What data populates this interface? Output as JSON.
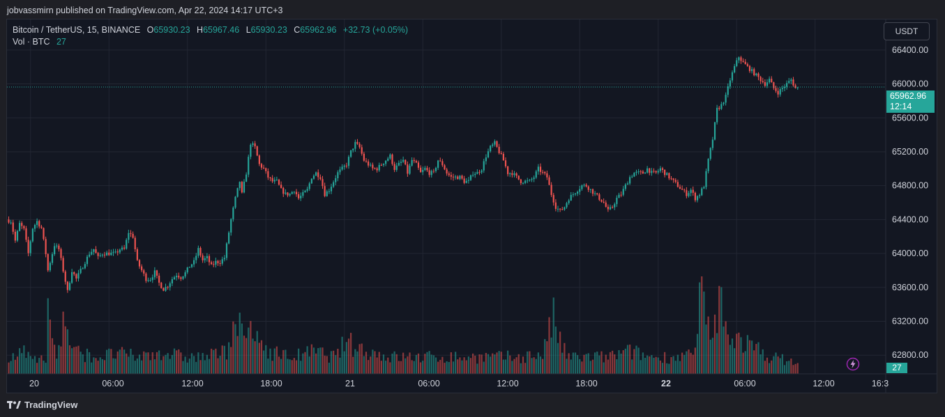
{
  "header": {
    "text": "jobvassmirn published on TradingView.com, Apr 22, 2024 14:17 UTC+3"
  },
  "legend": {
    "symbol": "Bitcoin / TetherUS, 15, BINANCE",
    "o_label": "O",
    "o_value": "65930.23",
    "h_label": "H",
    "h_value": "65967.46",
    "l_label": "L",
    "l_value": "65930.23",
    "c_label": "C",
    "c_value": "65962.96",
    "change": "+32.73 (+0.05%)",
    "vol_label": "Vol · BTC",
    "vol_value": "27"
  },
  "currency": {
    "label": "USDT"
  },
  "price_tag": {
    "price": "65962.96",
    "countdown": "12:14"
  },
  "volume_tag": {
    "value": "27"
  },
  "footer": {
    "brand": "TradingView"
  },
  "colors": {
    "up": "#26a69a",
    "down": "#ef5350",
    "background": "#131722",
    "grid": "#232733"
  },
  "icons": {
    "footer_logo": "tradingview-logo-icon",
    "replay": "lightning-bolt-icon"
  },
  "chart_data": {
    "type": "candlestick",
    "symbol": "BTCUSDT",
    "interval": "15",
    "exchange": "BINANCE",
    "current_price": 65962.96,
    "ylim": [
      62580,
      66760
    ],
    "y_ticks": [
      62800,
      63200,
      63600,
      64000,
      64400,
      64800,
      65200,
      65600,
      66000,
      66400
    ],
    "y_tick_labels": [
      "62800.00",
      "63200.00",
      "63600.00",
      "64000.00",
      "64400.00",
      "64800.00",
      "65200.00",
      "65600.00",
      "66000.00",
      "66400.00"
    ],
    "x_ticks": [
      {
        "label": "20",
        "bold": false
      },
      {
        "label": "06:00",
        "bold": false
      },
      {
        "label": "12:00",
        "bold": false
      },
      {
        "label": "18:00",
        "bold": false
      },
      {
        "label": "21",
        "bold": false
      },
      {
        "label": "06:00",
        "bold": false
      },
      {
        "label": "12:00",
        "bold": false
      },
      {
        "label": "18:00",
        "bold": false
      },
      {
        "label": "22",
        "bold": true
      },
      {
        "label": "06:00",
        "bold": false
      },
      {
        "label": "12:00",
        "bold": false
      },
      {
        "label": "16:3",
        "bold": false
      }
    ],
    "grid": true,
    "anchors": [
      [
        0,
        64400
      ],
      [
        2,
        64380
      ],
      [
        4,
        64150
      ],
      [
        6,
        64350
      ],
      [
        8,
        64280
      ],
      [
        10,
        64000
      ],
      [
        12,
        64300
      ],
      [
        14,
        64380
      ],
      [
        16,
        64300
      ],
      [
        18,
        64000
      ],
      [
        19,
        63800
      ],
      [
        20,
        63900
      ],
      [
        22,
        64100
      ],
      [
        24,
        64050
      ],
      [
        26,
        63800
      ],
      [
        28,
        63550
      ],
      [
        30,
        63800
      ],
      [
        32,
        63700
      ],
      [
        34,
        63800
      ],
      [
        36,
        63900
      ],
      [
        38,
        64000
      ],
      [
        40,
        64050
      ],
      [
        42,
        63950
      ],
      [
        44,
        64000
      ],
      [
        46,
        64000
      ],
      [
        48,
        64000
      ],
      [
        50,
        64000
      ],
      [
        52,
        64050
      ],
      [
        54,
        64050
      ],
      [
        56,
        64250
      ],
      [
        58,
        64200
      ],
      [
        60,
        63900
      ],
      [
        62,
        63800
      ],
      [
        64,
        63700
      ],
      [
        66,
        63700
      ],
      [
        68,
        63780
      ],
      [
        70,
        63650
      ],
      [
        72,
        63580
      ],
      [
        74,
        63620
      ],
      [
        76,
        63700
      ],
      [
        78,
        63750
      ],
      [
        80,
        63720
      ],
      [
        82,
        63770
      ],
      [
        84,
        63850
      ],
      [
        86,
        63900
      ],
      [
        88,
        64050
      ],
      [
        90,
        63920
      ],
      [
        92,
        63950
      ],
      [
        94,
        63850
      ],
      [
        96,
        63900
      ],
      [
        98,
        63900
      ],
      [
        100,
        63950
      ],
      [
        103,
        64400
      ],
      [
        105,
        64650
      ],
      [
        106,
        64750
      ],
      [
        107,
        64850
      ],
      [
        108,
        64700
      ],
      [
        110,
        64950
      ],
      [
        112,
        65300
      ],
      [
        114,
        65250
      ],
      [
        116,
        65050
      ],
      [
        118,
        65000
      ],
      [
        120,
        64900
      ],
      [
        122,
        64850
      ],
      [
        124,
        64850
      ],
      [
        126,
        64750
      ],
      [
        128,
        64700
      ],
      [
        130,
        64700
      ],
      [
        132,
        64750
      ],
      [
        134,
        64650
      ],
      [
        136,
        64700
      ],
      [
        138,
        64750
      ],
      [
        140,
        64900
      ],
      [
        142,
        64950
      ],
      [
        144,
        64900
      ],
      [
        146,
        64700
      ],
      [
        148,
        64750
      ],
      [
        150,
        64850
      ],
      [
        152,
        64950
      ],
      [
        154,
        65000
      ],
      [
        156,
        65050
      ],
      [
        158,
        65200
      ],
      [
        160,
        65300
      ],
      [
        162,
        65250
      ],
      [
        164,
        65100
      ],
      [
        166,
        65050
      ],
      [
        168,
        65000
      ],
      [
        170,
        65000
      ],
      [
        172,
        65050
      ],
      [
        174,
        65100
      ],
      [
        176,
        65150
      ],
      [
        178,
        65000
      ],
      [
        180,
        65050
      ],
      [
        182,
        65100
      ],
      [
        184,
        64950
      ],
      [
        186,
        65100
      ],
      [
        188,
        65050
      ],
      [
        190,
        64950
      ],
      [
        192,
        65000
      ],
      [
        194,
        64950
      ],
      [
        196,
        64950
      ],
      [
        198,
        65100
      ],
      [
        200,
        65050
      ],
      [
        202,
        64950
      ],
      [
        204,
        64900
      ],
      [
        206,
        64900
      ],
      [
        208,
        64900
      ],
      [
        210,
        64850
      ],
      [
        212,
        64850
      ],
      [
        214,
        64950
      ],
      [
        216,
        64950
      ],
      [
        218,
        65000
      ],
      [
        220,
        65150
      ],
      [
        222,
        65250
      ],
      [
        224,
        65300
      ],
      [
        226,
        65200
      ],
      [
        228,
        65100
      ],
      [
        230,
        64950
      ],
      [
        232,
        64950
      ],
      [
        234,
        64900
      ],
      [
        236,
        64850
      ],
      [
        238,
        64850
      ],
      [
        240,
        64850
      ],
      [
        242,
        64900
      ],
      [
        244,
        65000
      ],
      [
        246,
        64950
      ],
      [
        248,
        64900
      ],
      [
        250,
        64700
      ],
      [
        252,
        64550
      ],
      [
        254,
        64500
      ],
      [
        256,
        64550
      ],
      [
        258,
        64650
      ],
      [
        260,
        64700
      ],
      [
        262,
        64750
      ],
      [
        264,
        64800
      ],
      [
        266,
        64800
      ],
      [
        268,
        64750
      ],
      [
        270,
        64700
      ],
      [
        272,
        64650
      ],
      [
        274,
        64600
      ],
      [
        276,
        64500
      ],
      [
        278,
        64550
      ],
      [
        280,
        64650
      ],
      [
        282,
        64700
      ],
      [
        284,
        64800
      ],
      [
        286,
        64900
      ],
      [
        288,
        64950
      ],
      [
        290,
        64950
      ],
      [
        292,
        64950
      ],
      [
        294,
        65000
      ],
      [
        296,
        64950
      ],
      [
        298,
        64950
      ],
      [
        300,
        65000
      ],
      [
        302,
        64950
      ],
      [
        304,
        64900
      ],
      [
        306,
        64850
      ],
      [
        308,
        64800
      ],
      [
        310,
        64750
      ],
      [
        312,
        64700
      ],
      [
        314,
        64750
      ],
      [
        316,
        64650
      ],
      [
        318,
        64700
      ],
      [
        320,
        64800
      ],
      [
        322,
        65100
      ],
      [
        324,
        65350
      ],
      [
        326,
        65700
      ],
      [
        328,
        65750
      ],
      [
        330,
        65850
      ],
      [
        332,
        66050
      ],
      [
        334,
        66200
      ],
      [
        336,
        66320
      ],
      [
        338,
        66250
      ],
      [
        340,
        66200
      ],
      [
        342,
        66150
      ],
      [
        344,
        66100
      ],
      [
        346,
        66050
      ],
      [
        348,
        66000
      ],
      [
        350,
        66050
      ],
      [
        352,
        65950
      ],
      [
        354,
        65900
      ],
      [
        356,
        65950
      ],
      [
        358,
        66000
      ],
      [
        360,
        66050
      ],
      [
        362,
        65950
      ]
    ],
    "volume_anchors": [
      [
        0,
        15
      ],
      [
        10,
        20
      ],
      [
        17,
        10
      ],
      [
        18,
        60
      ],
      [
        22,
        15
      ],
      [
        25,
        45
      ],
      [
        30,
        20
      ],
      [
        40,
        15
      ],
      [
        50,
        18
      ],
      [
        60,
        15
      ],
      [
        70,
        20
      ],
      [
        80,
        15
      ],
      [
        90,
        15
      ],
      [
        100,
        20
      ],
      [
        103,
        50
      ],
      [
        106,
        40
      ],
      [
        110,
        35
      ],
      [
        115,
        30
      ],
      [
        120,
        20
      ],
      [
        130,
        15
      ],
      [
        140,
        20
      ],
      [
        150,
        15
      ],
      [
        155,
        30
      ],
      [
        158,
        25
      ],
      [
        165,
        20
      ],
      [
        175,
        15
      ],
      [
        185,
        15
      ],
      [
        195,
        15
      ],
      [
        205,
        15
      ],
      [
        215,
        15
      ],
      [
        225,
        15
      ],
      [
        235,
        15
      ],
      [
        245,
        18
      ],
      [
        250,
        50
      ],
      [
        252,
        35
      ],
      [
        256,
        15
      ],
      [
        265,
        15
      ],
      [
        275,
        15
      ],
      [
        285,
        20
      ],
      [
        295,
        15
      ],
      [
        305,
        15
      ],
      [
        315,
        18
      ],
      [
        318,
        80
      ],
      [
        322,
        25
      ],
      [
        326,
        60
      ],
      [
        327,
        90
      ],
      [
        328,
        40
      ],
      [
        332,
        35
      ],
      [
        336,
        30
      ],
      [
        340,
        25
      ],
      [
        350,
        15
      ],
      [
        362,
        10
      ]
    ]
  }
}
